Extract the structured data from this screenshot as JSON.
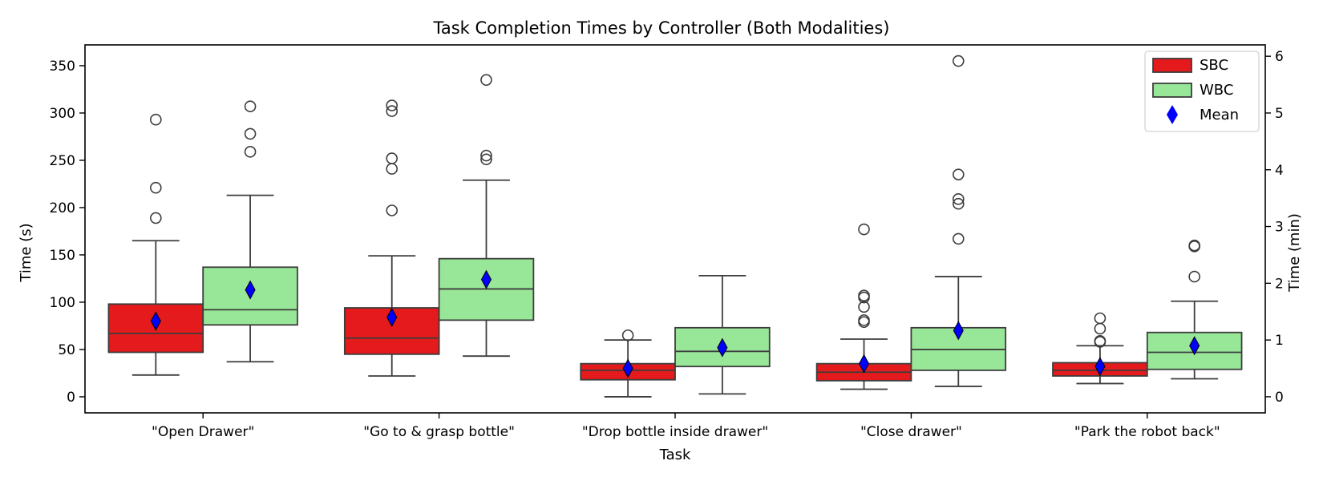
{
  "chart_data": {
    "type": "box",
    "title": "Task Completion Times by Controller (Both Modalities)",
    "xlabel": "Task",
    "ylabel": "Time (s)",
    "ylabel_right": "Time (min)",
    "ylim": [
      -17,
      372
    ],
    "yticks": [
      0,
      50,
      100,
      150,
      200,
      250,
      300,
      350
    ],
    "yticks_right": [
      0,
      1,
      2,
      3,
      4,
      5,
      6
    ],
    "categories": [
      "\"Open Drawer\"",
      "\"Go to & grasp bottle\"",
      "\"Drop bottle inside drawer\"",
      "\"Close drawer\"",
      "\"Park the robot back\""
    ],
    "legend": {
      "placement": "top-right",
      "mean_label": "Mean"
    },
    "colors": {
      "SBC": "#e41a1c",
      "WBC": "#98e698",
      "mean": "#0000ff"
    },
    "series": [
      {
        "name": "SBC",
        "boxes": [
          {
            "whislo": 23,
            "q1": 47,
            "med": 67,
            "q3": 98,
            "whishi": 165,
            "mean": 80,
            "fliers": [
              189,
              221,
              293
            ]
          },
          {
            "whislo": 22,
            "q1": 45,
            "med": 62,
            "q3": 94,
            "whishi": 149,
            "mean": 84,
            "fliers": [
              197,
              241,
              252,
              302,
              308
            ]
          },
          {
            "whislo": 0,
            "q1": 18,
            "med": 28,
            "q3": 35,
            "whishi": 60,
            "mean": 30,
            "fliers": [
              65
            ]
          },
          {
            "whislo": 8,
            "q1": 17,
            "med": 26,
            "q3": 35,
            "whishi": 61,
            "mean": 35,
            "fliers": [
              79,
              81,
              95,
              105,
              107,
              177
            ]
          },
          {
            "whislo": 14,
            "q1": 22,
            "med": 28,
            "q3": 36,
            "whishi": 54,
            "mean": 32,
            "fliers": [
              58,
              59,
              72,
              83
            ]
          }
        ]
      },
      {
        "name": "WBC",
        "boxes": [
          {
            "whislo": 37,
            "q1": 76,
            "med": 92,
            "q3": 137,
            "whishi": 213,
            "mean": 113,
            "fliers": [
              259,
              278,
              307
            ]
          },
          {
            "whislo": 43,
            "q1": 81,
            "med": 114,
            "q3": 146,
            "whishi": 229,
            "mean": 124,
            "fliers": [
              251,
              255,
              335
            ]
          },
          {
            "whislo": 3,
            "q1": 32,
            "med": 48,
            "q3": 73,
            "whishi": 128,
            "mean": 52,
            "fliers": []
          },
          {
            "whislo": 11,
            "q1": 28,
            "med": 50,
            "q3": 73,
            "whishi": 127,
            "mean": 70,
            "fliers": [
              167,
              204,
              209,
              235,
              355
            ]
          },
          {
            "whislo": 19,
            "q1": 29,
            "med": 47,
            "q3": 68,
            "whishi": 101,
            "mean": 54,
            "fliers": [
              127,
              159,
              160
            ]
          }
        ]
      }
    ]
  }
}
